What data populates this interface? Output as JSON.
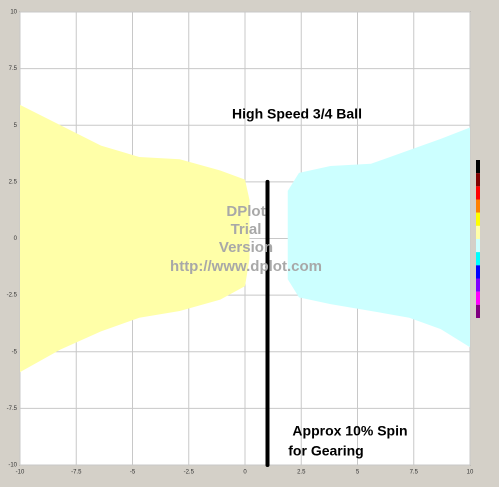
{
  "chart_data": {
    "type": "contour",
    "xlim": [
      -10,
      10
    ],
    "ylim": [
      -10,
      10
    ],
    "xticks": [
      -10,
      -7.5,
      -5,
      -2.5,
      0,
      2.5,
      5,
      7.5,
      10
    ],
    "yticks": [
      -10,
      -7.5,
      -5,
      -2.5,
      0,
      2.5,
      5,
      7.5,
      10
    ],
    "grid": true,
    "annotations": [
      "High Speed 3/4 Ball",
      "Approx 10% Spin",
      "for Gearing"
    ],
    "watermark": [
      "DPlot",
      "Trial",
      "Version",
      "http://www.dplot.com"
    ],
    "regions": [
      {
        "color": "#ffffa8",
        "points": [
          [
            -10,
            5.9
          ],
          [
            -8.2,
            5.0
          ],
          [
            -6.4,
            4.1
          ],
          [
            -4.7,
            3.6
          ],
          [
            -2.9,
            3.5
          ],
          [
            -1.1,
            3.0
          ],
          [
            0,
            2.6
          ],
          [
            0.2,
            1.7
          ],
          [
            0.2,
            -0.9
          ],
          [
            0,
            -2.1
          ],
          [
            -1.1,
            -2.7
          ],
          [
            -2.9,
            -3.2
          ],
          [
            -4.7,
            -3.5
          ],
          [
            -6.4,
            -4.1
          ],
          [
            -8.2,
            -4.9
          ],
          [
            -10,
            -5.9
          ]
        ]
      },
      {
        "color": "#ccffff",
        "points": [
          [
            1.9,
            2.1
          ],
          [
            2.4,
            2.9
          ],
          [
            3.8,
            3.2
          ],
          [
            5.6,
            3.3
          ],
          [
            7.3,
            3.9
          ],
          [
            8.7,
            4.4
          ],
          [
            10,
            4.9
          ],
          [
            10,
            -4.8
          ],
          [
            8.7,
            -4.0
          ],
          [
            7.3,
            -3.5
          ],
          [
            5.6,
            -3.2
          ],
          [
            3.8,
            -2.9
          ],
          [
            2.4,
            -2.6
          ],
          [
            1.9,
            -1.8
          ]
        ]
      }
    ],
    "line": {
      "color": "#000000",
      "x": [
        1,
        1
      ],
      "y": [
        2.5,
        -10
      ]
    },
    "colorbar": [
      "#000000",
      "#800000",
      "#ff0000",
      "#ff8000",
      "#ffff00",
      "#ffffa8",
      "#ccffff",
      "#00ffff",
      "#0000ff",
      "#8000ff",
      "#ff00ff",
      "#800080"
    ]
  }
}
